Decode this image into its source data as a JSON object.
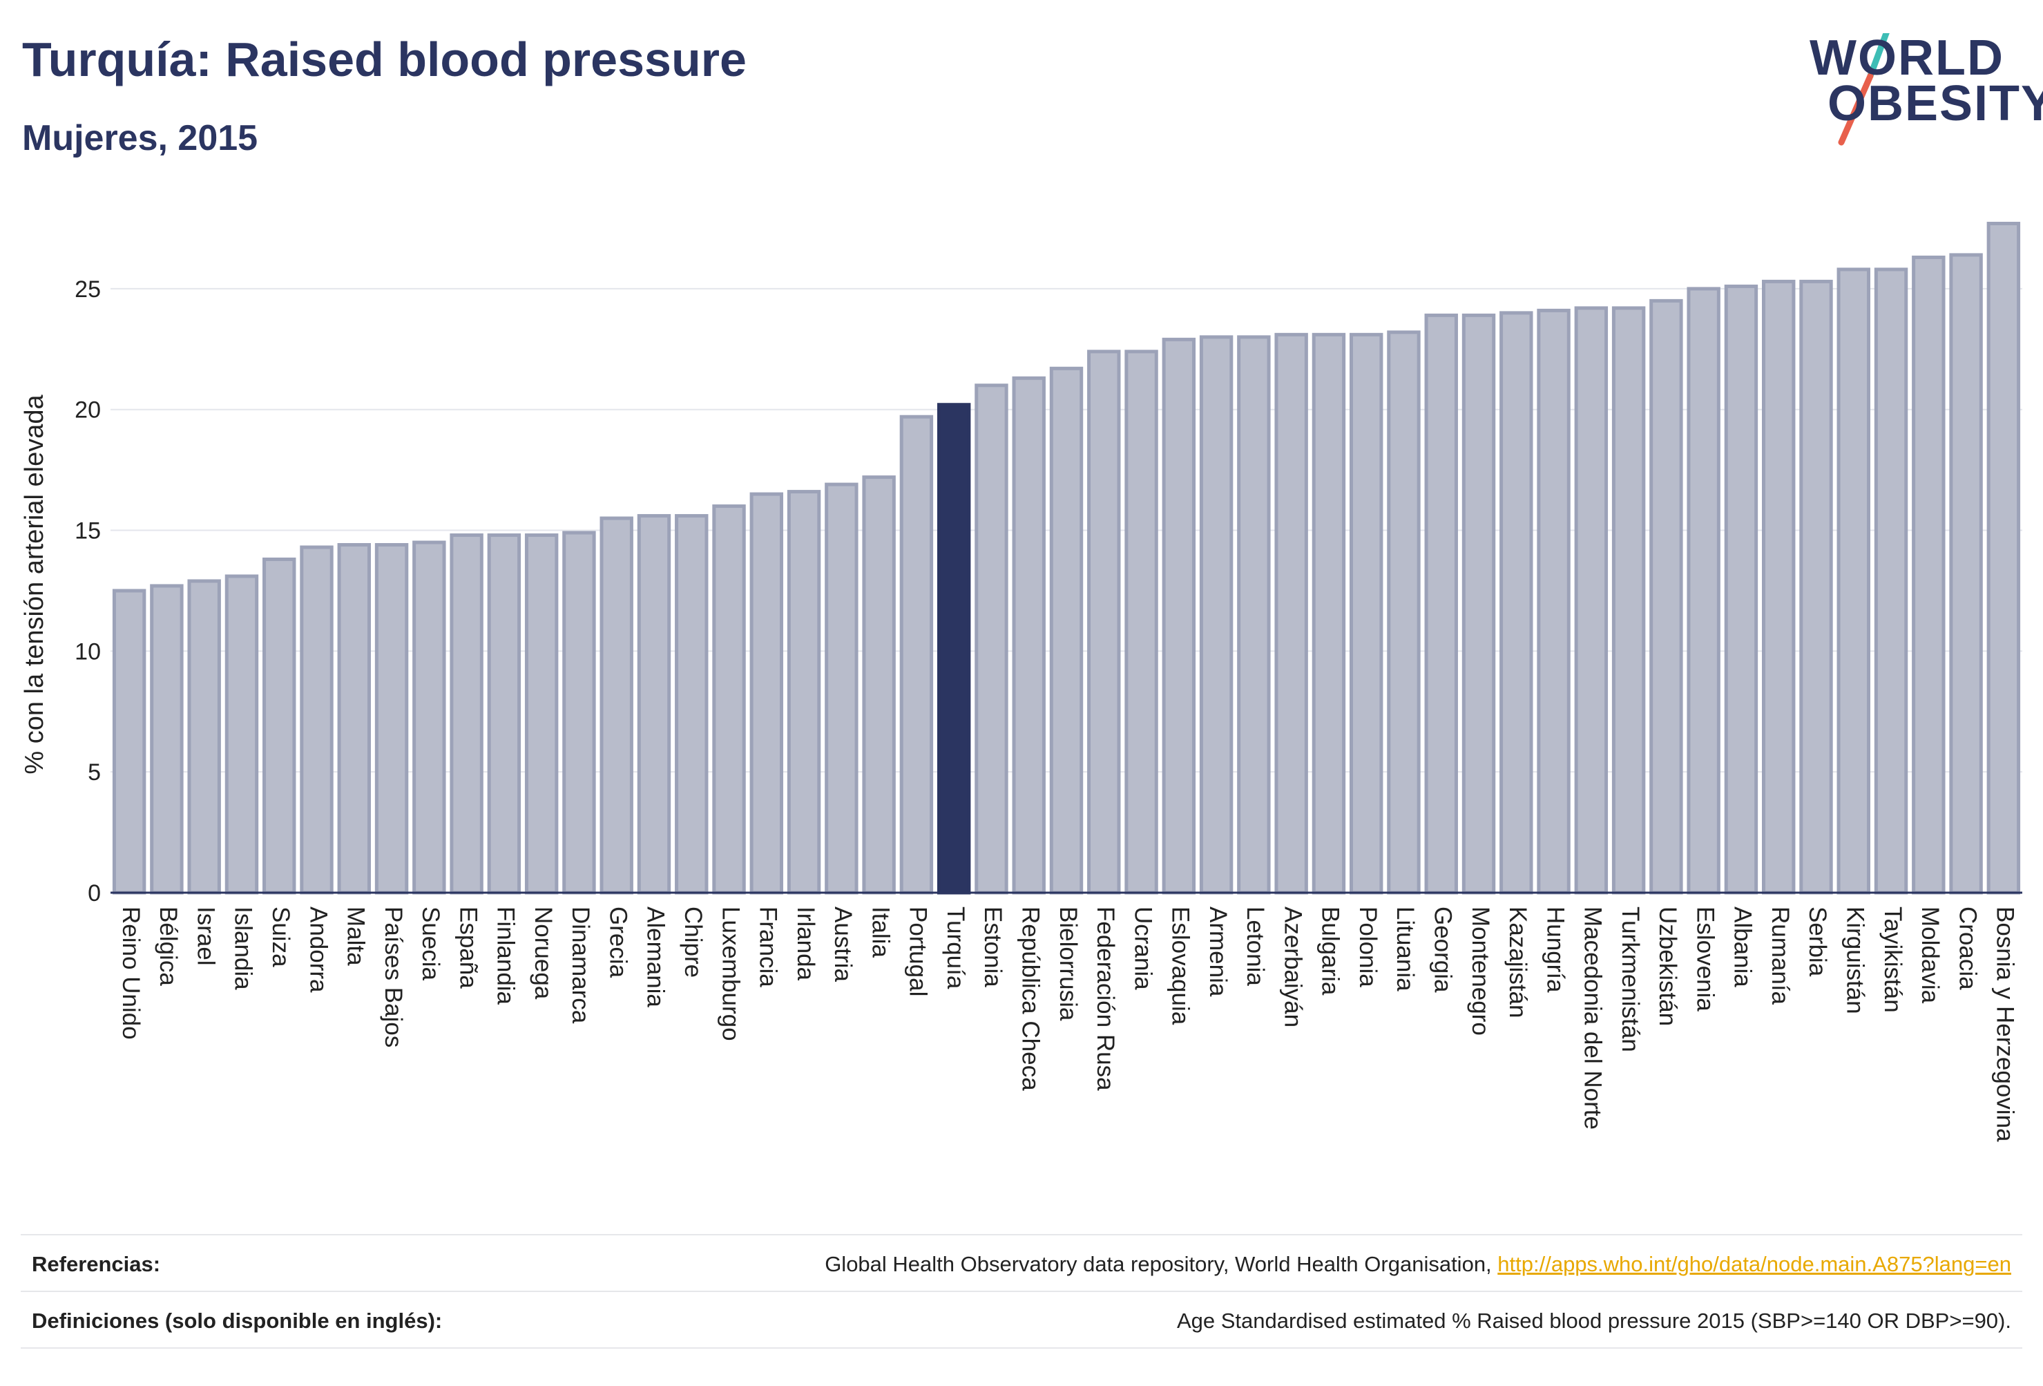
{
  "header": {
    "title": "Turquía: Raised blood pressure",
    "subtitle": "Mujeres, 2015"
  },
  "logo": {
    "line1": "WORLD",
    "line2": "OBESITY",
    "colors": {
      "text": "#2b3561",
      "slash_top": "#3dbdb5",
      "slash_bottom": "#e8604c"
    }
  },
  "colors": {
    "bar_fill": "#b8bccb",
    "bar_stroke": "#9ca2b8",
    "highlight": "#2b3561",
    "grid": "#e4e6ec",
    "axis": "#2b3561"
  },
  "chart_data": {
    "type": "bar",
    "ylabel": "% con la tensión arterial elevada",
    "xlabel": "",
    "ylim": [
      0,
      27.8
    ],
    "yticks": [
      0,
      5,
      10,
      15,
      20,
      25
    ],
    "grid": true,
    "highlight": "Turquía",
    "categories": [
      "Reino Unido",
      "Bélgica",
      "Israel",
      "Islandia",
      "Suiza",
      "Andorra",
      "Malta",
      "Países Bajos",
      "Suecia",
      "España",
      "Finlandia",
      "Noruega",
      "Dinamarca",
      "Grecia",
      "Alemania",
      "Chipre",
      "Luxemburgo",
      "Francia",
      "Irlanda",
      "Austria",
      "Italia",
      "Portugal",
      "Turquía",
      "Estonia",
      "República Checa",
      "Bielorrusia",
      "Federación Rusa",
      "Ucrania",
      "Eslovaquia",
      "Armenia",
      "Letonia",
      "Azerbaiyán",
      "Bulgaria",
      "Polonia",
      "Lituania",
      "Georgia",
      "Montenegro",
      "Kazajistán",
      "Hungría",
      "Macedonia del Norte",
      "Turkmenistán",
      "Uzbekistán",
      "Eslovenia",
      "Albania",
      "Rumanía",
      "Serbia",
      "Kirguistán",
      "Tayikistán",
      "Moldavia",
      "Croacia",
      "Bosnia y Herzegovina"
    ],
    "values": [
      12.5,
      12.7,
      12.9,
      13.1,
      13.8,
      14.3,
      14.4,
      14.4,
      14.5,
      14.8,
      14.8,
      14.8,
      14.9,
      15.5,
      15.6,
      15.6,
      16.0,
      16.5,
      16.6,
      16.9,
      17.2,
      19.7,
      20.2,
      21.0,
      21.3,
      21.7,
      22.4,
      22.4,
      22.9,
      23.0,
      23.0,
      23.1,
      23.1,
      23.1,
      23.2,
      23.9,
      23.9,
      24.0,
      24.1,
      24.2,
      24.2,
      24.5,
      25.0,
      25.1,
      25.3,
      25.3,
      25.8,
      25.8,
      26.3,
      26.4,
      27.7
    ]
  },
  "footer": {
    "references_label": "Referencias:",
    "references_text": "Global Health Observatory data repository, World Health Organisation, ",
    "references_link": "http://apps.who.int/gho/data/node.main.A875?lang=en",
    "definitions_label": "Definiciones (solo disponible en inglés):",
    "definitions_text": "Age Standardised estimated % Raised blood pressure 2015 (SBP>=140 OR DBP>=90)."
  }
}
